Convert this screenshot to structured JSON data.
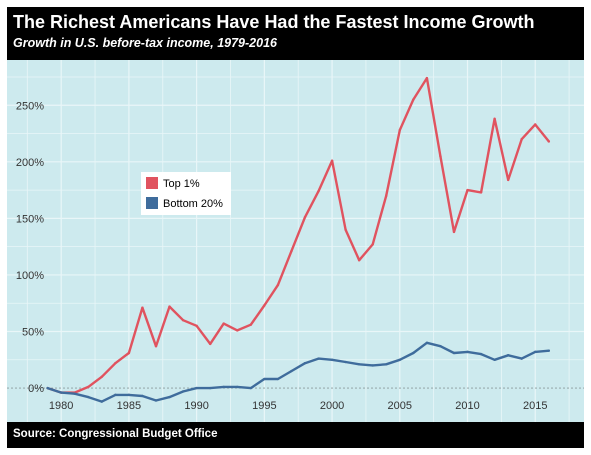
{
  "header": {
    "title": "The Richest Americans Have Had the Fastest Income Growth",
    "subtitle": "Growth in U.S. before-tax income, 1979-2016"
  },
  "footer": {
    "source": "Source: Congressional Budget Office"
  },
  "chart_data": {
    "type": "line",
    "title": "The Richest Americans Have Had the Fastest Income Growth",
    "subtitle": "Growth in U.S. before-tax income, 1979-2016",
    "xlabel": "",
    "ylabel": "",
    "x": [
      1979,
      1980,
      1981,
      1982,
      1983,
      1984,
      1985,
      1986,
      1987,
      1988,
      1989,
      1990,
      1991,
      1992,
      1993,
      1994,
      1995,
      1996,
      1997,
      1998,
      1999,
      2000,
      2001,
      2002,
      2003,
      2004,
      2005,
      2006,
      2007,
      2008,
      2009,
      2010,
      2011,
      2012,
      2013,
      2014,
      2015,
      2016
    ],
    "series": [
      {
        "name": "Top 1%",
        "color": "#e0535f",
        "values": [
          0,
          -4,
          -4,
          1,
          10,
          22,
          31,
          71,
          37,
          72,
          60,
          55,
          39,
          57,
          51,
          56,
          73,
          91,
          121,
          151,
          174,
          201,
          140,
          113,
          127,
          170,
          228,
          255,
          274,
          205,
          138,
          175,
          173,
          238,
          184,
          220,
          233,
          218
        ]
      },
      {
        "name": "Bottom 20%",
        "color": "#3f6c9c",
        "values": [
          0,
          -4,
          -5,
          -8,
          -12,
          -6,
          -6,
          -7,
          -11,
          -8,
          -3,
          0,
          0,
          1,
          1,
          0,
          8,
          8,
          15,
          22,
          26,
          25,
          23,
          21,
          20,
          21,
          25,
          31,
          40,
          37,
          31,
          32,
          30,
          25,
          29,
          26,
          32,
          33
        ]
      }
    ],
    "xlim": [
      1976,
      2018.6
    ],
    "ylim": [
      -30,
      290
    ],
    "x_ticks": [
      1980,
      1985,
      1990,
      1995,
      2000,
      2005,
      2010,
      2015
    ],
    "x_tick_labels": [
      "1980",
      "1985",
      "1990",
      "1995",
      "2000",
      "2005",
      "2010",
      "2015"
    ],
    "y_ticks": [
      0,
      50,
      100,
      150,
      200,
      250
    ],
    "y_tick_labels": [
      "0%",
      "50%",
      "100%",
      "150%",
      "200%",
      "250%"
    ],
    "grid": true,
    "zero_line": "dotted",
    "legend_position": "upper-left"
  }
}
